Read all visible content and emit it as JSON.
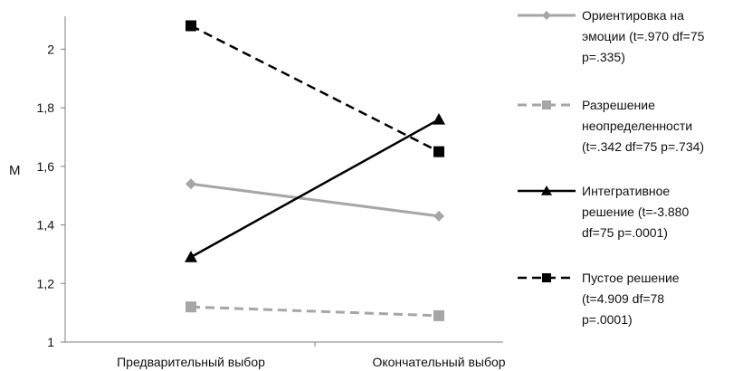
{
  "chart_data": {
    "type": "line",
    "categories": [
      "Предварительный выбор",
      "Окончательный выбор"
    ],
    "ylabel": "M",
    "ylim": [
      1,
      2.1
    ],
    "yticks": [
      1,
      1.2,
      1.4,
      1.6,
      1.8,
      2
    ],
    "ytick_labels": [
      "1",
      "1,2",
      "1,4",
      "1,6",
      "1,8",
      "2"
    ],
    "grid": false,
    "legend": "right",
    "series": [
      {
        "name": "Ориентировка на эмоции (t=.970 df=75 p=.335)",
        "legend_lines": [
          "Ориентировка на",
          "эмоции (t=.970 df=75",
          "p=.335)"
        ],
        "values": [
          1.54,
          1.43
        ],
        "color": "#a6a6a6",
        "dash": "solid",
        "marker": "diamond"
      },
      {
        "name": "Разрешение неопределенности (t=.342 df=75 p=.734)",
        "legend_lines": [
          "Разрешение",
          "неопределенности",
          "(t=.342 df=75 p=.734)"
        ],
        "values": [
          1.12,
          1.09
        ],
        "color": "#a6a6a6",
        "dash": "dashed",
        "marker": "square"
      },
      {
        "name": "Интегративное решение (t=-3.880 df=75 p=.0001)",
        "legend_lines": [
          "Интегративное",
          "решение (t=-3.880",
          "df=75 p=.0001)"
        ],
        "values": [
          1.29,
          1.76
        ],
        "color": "#000000",
        "dash": "solid",
        "marker": "triangle"
      },
      {
        "name": "Пустое решение (t=4.909 df=78 p=.0001)",
        "legend_lines": [
          "Пустое решение",
          "(t=4.909 df=78",
          "p=.0001)"
        ],
        "values": [
          2.08,
          1.65
        ],
        "color": "#000000",
        "dash": "dashed",
        "marker": "square"
      }
    ]
  }
}
